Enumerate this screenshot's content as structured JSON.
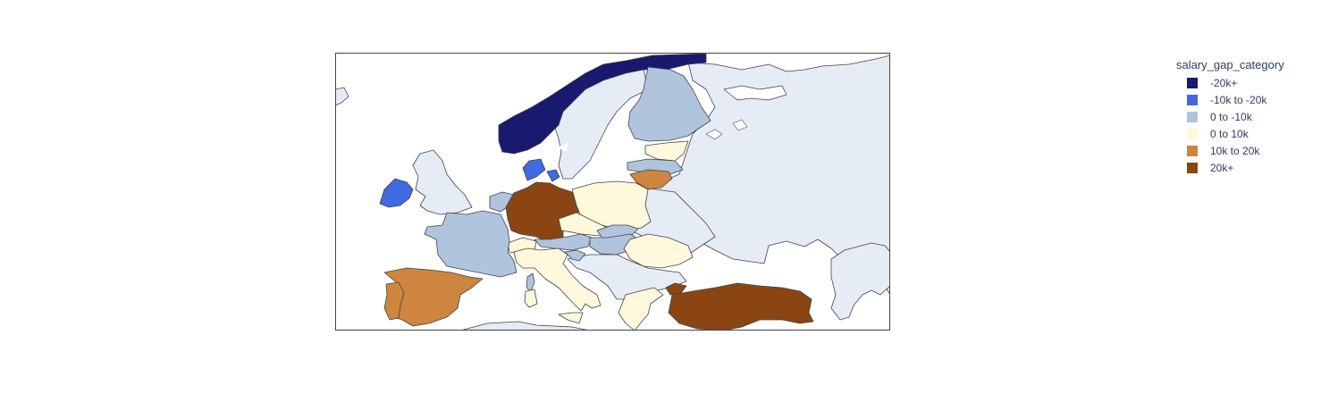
{
  "legend": {
    "title": "salary_gap_category",
    "items": [
      {
        "key": "neg20plus",
        "label": "-20k+",
        "color": "#191970"
      },
      {
        "key": "neg10to20",
        "label": "-10k to -20k",
        "color": "#4169e1"
      },
      {
        "key": "zero_to_neg10",
        "label": "0 to -10k",
        "color": "#b0c4de"
      },
      {
        "key": "zero_to_10",
        "label": "0 to 10k",
        "color": "#fff8dc"
      },
      {
        "key": "ten_to_20",
        "label": "10k to 20k",
        "color": "#cd853f"
      },
      {
        "key": "twenty_plus",
        "label": "20k+",
        "color": "#8b4513"
      }
    ]
  },
  "map": {
    "land_color": "#e5ecf6",
    "water_color": "#ffffff",
    "border_color": "#444444",
    "regions": [
      {
        "name": "Norway",
        "category": "neg20plus"
      },
      {
        "name": "Ireland",
        "category": "neg10to20"
      },
      {
        "name": "Denmark",
        "category": "neg10to20"
      },
      {
        "name": "Finland",
        "category": "zero_to_neg10"
      },
      {
        "name": "France",
        "category": "zero_to_neg10"
      },
      {
        "name": "Netherlands",
        "category": "zero_to_neg10"
      },
      {
        "name": "Belgium",
        "category": "zero_to_neg10"
      },
      {
        "name": "Latvia",
        "category": "zero_to_neg10"
      },
      {
        "name": "Austria",
        "category": "zero_to_neg10"
      },
      {
        "name": "Hungary",
        "category": "zero_to_neg10"
      },
      {
        "name": "Slovakia",
        "category": "zero_to_neg10"
      },
      {
        "name": "Croatia",
        "category": "zero_to_neg10"
      },
      {
        "name": "Corsica",
        "category": "zero_to_neg10"
      },
      {
        "name": "Estonia",
        "category": "zero_to_10"
      },
      {
        "name": "Poland",
        "category": "zero_to_10"
      },
      {
        "name": "Czechia",
        "category": "zero_to_10"
      },
      {
        "name": "Switzerland",
        "category": "zero_to_10"
      },
      {
        "name": "Italy",
        "category": "zero_to_10"
      },
      {
        "name": "Sardinia",
        "category": "zero_to_10"
      },
      {
        "name": "Romania",
        "category": "zero_to_10"
      },
      {
        "name": "Greece",
        "category": "zero_to_10"
      },
      {
        "name": "Sicily",
        "category": "zero_to_10"
      },
      {
        "name": "Lithuania",
        "category": "ten_to_20"
      },
      {
        "name": "Spain",
        "category": "ten_to_20"
      },
      {
        "name": "Portugal",
        "category": "ten_to_20"
      },
      {
        "name": "Germany",
        "category": "twenty_plus"
      },
      {
        "name": "Turkey",
        "category": "twenty_plus"
      },
      {
        "name": "Turkey-Thrace",
        "category": "twenty_plus"
      }
    ]
  }
}
